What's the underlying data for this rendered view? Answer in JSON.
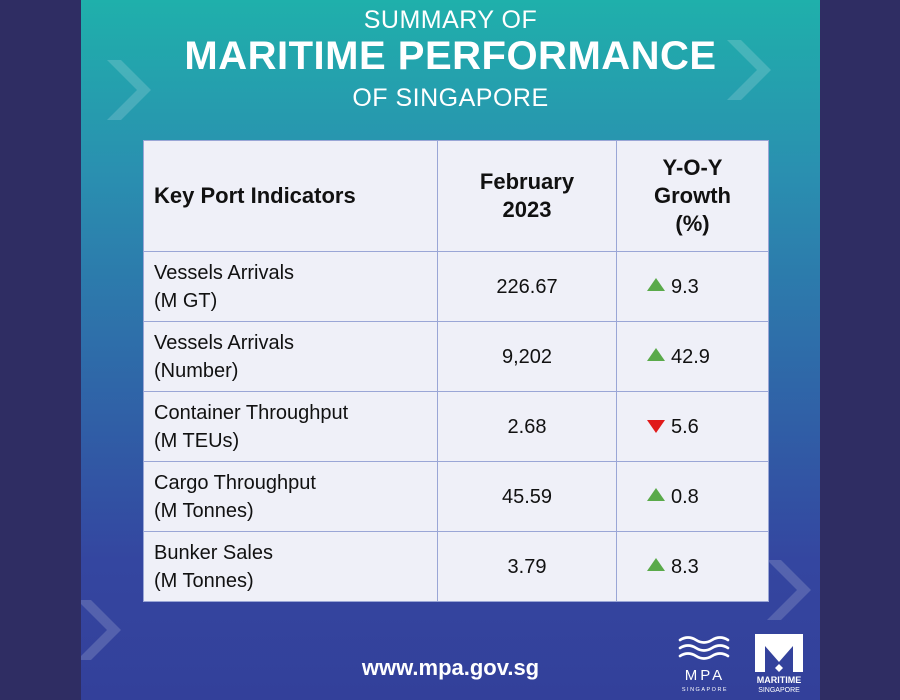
{
  "header": {
    "line1": "SUMMARY OF",
    "line2": "MARITIME PERFORMANCE",
    "line3": "OF SINGAPORE"
  },
  "table": {
    "headers": {
      "indicator": "Key Port Indicators",
      "period_line1": "February",
      "period_line2": "2023",
      "growth_line1": "Y-O-Y",
      "growth_line2": "Growth",
      "growth_line3": "(%)"
    },
    "rows": [
      {
        "label": "Vessels Arrivals",
        "unit": "(M GT)",
        "value": "226.67",
        "growth": "9.3",
        "direction": "up"
      },
      {
        "label": "Vessels Arrivals",
        "unit": "(Number)",
        "value": "9,202",
        "growth": "42.9",
        "direction": "up"
      },
      {
        "label": "Container Throughput",
        "unit": "(M TEUs)",
        "value": "2.68",
        "growth": "5.6",
        "direction": "down"
      },
      {
        "label": "Cargo Throughput",
        "unit": "(M Tonnes)",
        "value": "45.59",
        "growth": "0.8",
        "direction": "up"
      },
      {
        "label": "Bunker Sales",
        "unit": "(M Tonnes)",
        "value": "3.79",
        "growth": "8.3",
        "direction": "up"
      }
    ]
  },
  "footer": {
    "url": "www.mpa.gov.sg",
    "logo_mpa_text": "MPA",
    "logo_mpa_sub": "SINGAPORE",
    "logo_ms_line1": "MARITIME",
    "logo_ms_line2": "SINGAPORE"
  },
  "colors": {
    "up_arrow": "#5aaa4a",
    "down_arrow": "#e01a1a",
    "table_bg": "#eff0f8",
    "side_bg": "#2f2d63"
  }
}
